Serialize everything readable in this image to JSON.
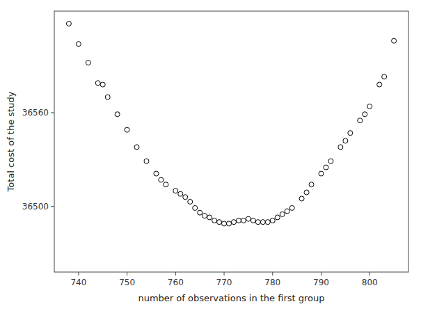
{
  "chart_data": {
    "type": "scatter",
    "x": [
      738,
      740,
      742,
      744,
      745,
      746,
      748,
      750,
      752,
      754,
      756,
      757,
      758,
      760,
      761,
      762,
      763,
      764,
      765,
      766,
      767,
      768,
      769,
      770,
      771,
      772,
      773,
      774,
      775,
      776,
      777,
      778,
      779,
      780,
      781,
      782,
      783,
      784,
      786,
      787,
      788,
      790,
      791,
      792,
      794,
      795,
      796,
      798,
      799,
      800,
      802,
      803,
      805
    ],
    "y": [
      36617,
      36604,
      36592,
      36579,
      36578,
      36570,
      36559,
      36549,
      36538,
      36529,
      36521,
      36517,
      36514,
      36510,
      36508,
      36506,
      36503,
      36499,
      36496,
      36494,
      36493,
      36491,
      36490,
      36489,
      36489,
      36490,
      36491,
      36491,
      36492,
      36491,
      36490,
      36490,
      36490,
      36491,
      36493,
      36495,
      36497,
      36499,
      36505,
      36509,
      36514,
      36521,
      36525,
      36529,
      36538,
      36542,
      36547,
      36555,
      36559,
      36564,
      36578,
      36583,
      36606
    ],
    "xlabel": "number of observations in the first group",
    "ylabel": "Total cost of the study",
    "xlim": [
      735,
      808
    ],
    "ylim": [
      36458,
      36625
    ],
    "xticks": [
      740,
      750,
      760,
      770,
      780,
      790,
      800
    ],
    "yticks": [
      36500,
      36560
    ],
    "color": "black",
    "marker": "circle",
    "grid": false
  }
}
